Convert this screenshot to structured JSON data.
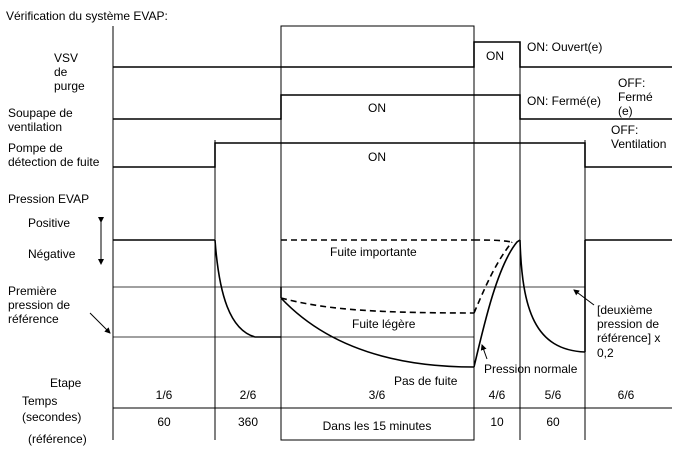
{
  "title": "Vérification du système EVAP:",
  "rows": {
    "vsv": {
      "label": [
        "VSV",
        "de",
        "purge"
      ],
      "on_label": "ON",
      "annotation": "ON: Ouvert(e)"
    },
    "vent": {
      "label": [
        "Soupape de",
        "ventilation"
      ],
      "on_label": "ON",
      "annotation": "ON: Fermé(e)",
      "off_annotation": [
        "OFF:",
        "Fermé",
        "(e)"
      ]
    },
    "pump": {
      "label": [
        "Pompe de",
        "détection de fuite"
      ],
      "on_label": "ON",
      "off_annotation": [
        "OFF:",
        "Ventilation"
      ]
    },
    "pressure": {
      "label": "Pression EVAP",
      "positive": "Positive",
      "negative": "Négative",
      "first_reference": [
        "Première",
        "pression de",
        "référence"
      ],
      "second_reference": [
        "[deuxième",
        "pression de",
        "référence] x",
        "0,2"
      ],
      "big_leak": "Fuite importante",
      "small_leak": "Fuite légère",
      "no_leak": "Pas de fuite",
      "normal_pressure": "Pression normale"
    }
  },
  "table": {
    "step_label": "Etape",
    "time_label": [
      "Temps",
      "(secondes)",
      "(référence)"
    ],
    "steps": [
      "1/6",
      "2/6",
      "3/6",
      "4/6",
      "5/6",
      "6/6"
    ],
    "times": [
      "60",
      "360",
      "Dans les 15 minutes",
      "10",
      "60",
      ""
    ]
  }
}
